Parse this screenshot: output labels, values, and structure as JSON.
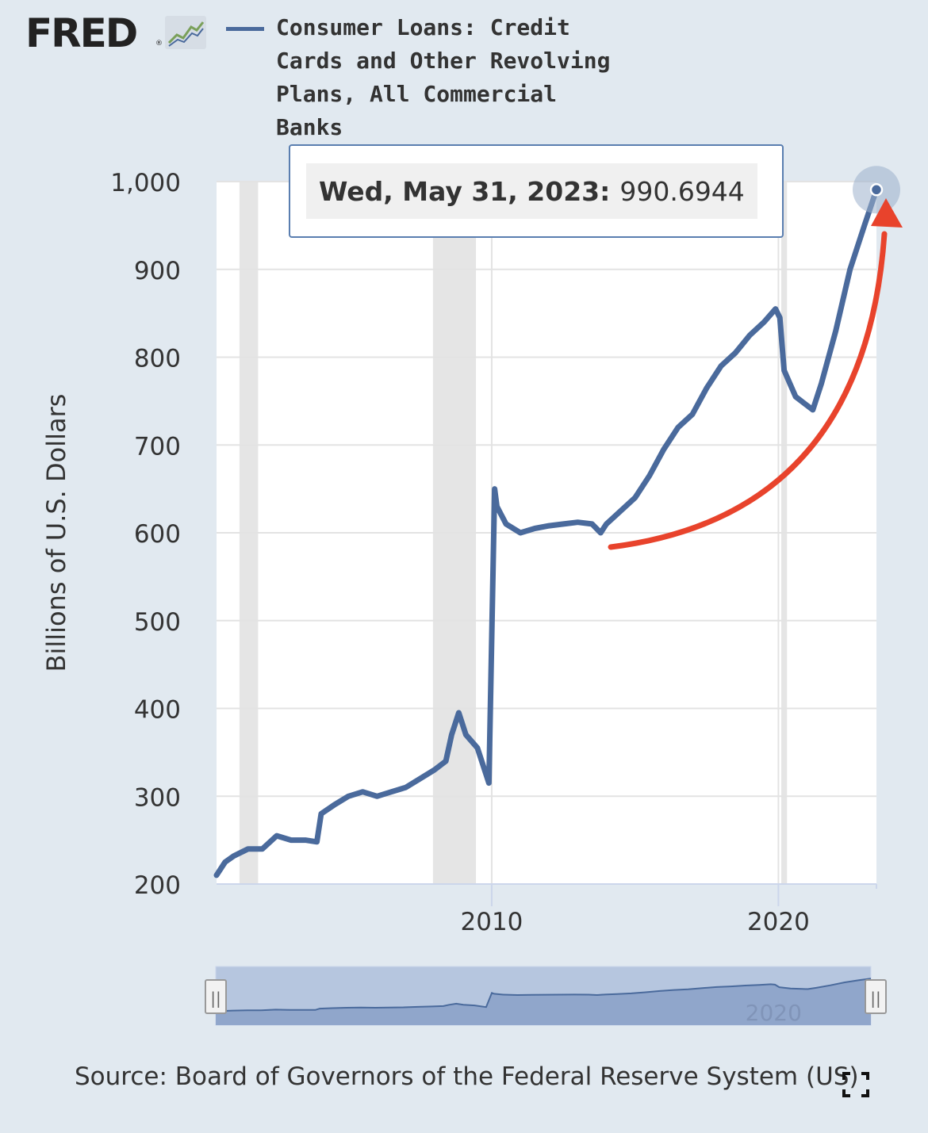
{
  "header": {
    "logo_text": "FRED",
    "logo_mark": "®",
    "logo_icon": "line-chart-icon"
  },
  "legend": {
    "series_name": "Consumer Loans: Credit Cards and Other Revolving Plans, All Commercial Banks",
    "line_color": "#4a6a9c"
  },
  "tooltip": {
    "date": "Wed, May 31, 2023:",
    "value": "990.6944"
  },
  "source": "Source: Board of Governors of the Federal Reserve System (US)",
  "navigator": {
    "label": "2020",
    "handle_label": "||"
  },
  "colors": {
    "background": "#e1e9f0",
    "plot": "#ffffff",
    "line": "#4a6a9c",
    "recession": "#e5e5e5",
    "annotation_arrow": "#e8432c"
  },
  "chart_data": {
    "type": "line",
    "title": "",
    "xlabel": "",
    "ylabel": "Billions of U.S. Dollars",
    "xlim": [
      2000.4,
      2023.42
    ],
    "ylim": [
      200,
      1000
    ],
    "yticks": [
      200,
      300,
      400,
      500,
      600,
      700,
      800,
      900,
      1000
    ],
    "ytick_labels": [
      "200",
      "300",
      "400",
      "500",
      "600",
      "700",
      "800",
      "900",
      "1,000"
    ],
    "xticks": [
      2010,
      2020
    ],
    "xtick_labels": [
      "2010",
      "2020"
    ],
    "grid": true,
    "recessions": [
      [
        2001.2,
        2001.85
      ],
      [
        2007.95,
        2009.45
      ],
      [
        2020.1,
        2020.3
      ]
    ],
    "series": [
      {
        "name": "Consumer Loans: Credit Cards and Other Revolving Plans, All Commercial Banks",
        "x": [
          2000.4,
          2000.7,
          2001.0,
          2001.5,
          2002.0,
          2002.5,
          2003.0,
          2003.5,
          2003.9,
          2004.05,
          2004.5,
          2005.0,
          2005.5,
          2006.0,
          2006.5,
          2007.0,
          2007.5,
          2008.0,
          2008.4,
          2008.6,
          2008.85,
          2009.1,
          2009.5,
          2009.9,
          2010.1,
          2010.18,
          2010.5,
          2011.0,
          2011.5,
          2012.0,
          2012.5,
          2013.0,
          2013.5,
          2013.8,
          2014.0,
          2014.5,
          2015.0,
          2015.5,
          2016.0,
          2016.5,
          2017.0,
          2017.5,
          2018.0,
          2018.5,
          2019.0,
          2019.5,
          2019.9,
          2020.05,
          2020.2,
          2020.6,
          2021.0,
          2021.2,
          2021.5,
          2022.0,
          2022.5,
          2023.0,
          2023.42
        ],
        "values": [
          210,
          225,
          232,
          240,
          240,
          255,
          250,
          250,
          248,
          280,
          290,
          300,
          305,
          300,
          305,
          310,
          320,
          330,
          340,
          370,
          395,
          370,
          355,
          315,
          650,
          630,
          610,
          600,
          605,
          608,
          610,
          612,
          610,
          600,
          610,
          625,
          640,
          665,
          695,
          720,
          735,
          765,
          790,
          805,
          825,
          840,
          855,
          845,
          785,
          755,
          745,
          740,
          770,
          830,
          900,
          950,
          990.6944
        ]
      }
    ]
  }
}
